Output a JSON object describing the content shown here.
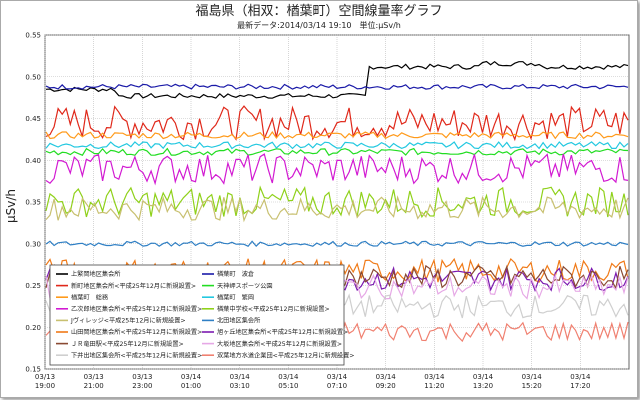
{
  "chart_data": {
    "type": "line",
    "title": "福島県（相双：楢葉町）空間線量率グラフ",
    "subtitle": "最新データ:2014/03/14 19:10　単位:μSv/h",
    "ylabel": "μSv/h",
    "xlabel": "",
    "ylim": [
      0.15,
      0.55
    ],
    "yticks": [
      "0.15",
      "0.20",
      "0.25",
      "0.30",
      "0.35",
      "0.40",
      "0.45",
      "0.50",
      "0.55"
    ],
    "xticks": [
      {
        "date": "03/13",
        "time": "19:00"
      },
      {
        "date": "03/13",
        "time": "21:00"
      },
      {
        "date": "03/13",
        "time": "23:00"
      },
      {
        "date": "03/14",
        "time": "01:00"
      },
      {
        "date": "03/14",
        "time": "03:10"
      },
      {
        "date": "03/14",
        "time": "05:10"
      },
      {
        "date": "03/14",
        "time": "07:10"
      },
      {
        "date": "03/14",
        "time": "09:20"
      },
      {
        "date": "03/14",
        "time": "11:20"
      },
      {
        "date": "03/14",
        "time": "13:20"
      },
      {
        "date": "03/14",
        "time": "15:20"
      },
      {
        "date": "03/14",
        "time": "17:20"
      }
    ],
    "grid": true,
    "legend_position": "bottom-left",
    "series": [
      {
        "name": "上繁岡地区集会所",
        "color": "#000000",
        "level": 0.485,
        "noise": 0.003,
        "profile": "step",
        "step_to": 0.512
      },
      {
        "name": "楢葉町　波倉",
        "color": "#1a1aa8",
        "level": 0.488,
        "noise": 0.003
      },
      {
        "name": "新町地区集会所<平成25年12月に新規設置>",
        "color": "#e0281a",
        "level": 0.445,
        "noise": 0.02
      },
      {
        "name": "天神岬スポーツ公園",
        "color": "#22dd22",
        "level": 0.41,
        "noise": 0.004
      },
      {
        "name": "楢葉町　総務",
        "color": "#ff9a1a",
        "level": 0.43,
        "noise": 0.004
      },
      {
        "name": "楢葉町　繁岡",
        "color": "#23c8e0",
        "level": 0.418,
        "noise": 0.004
      },
      {
        "name": "乙次郎地区集会所<平成25年12月に新規設置>",
        "color": "#d21ad2",
        "level": 0.39,
        "noise": 0.018
      },
      {
        "name": "楢葉中学校<平成25年12月に新規設置>",
        "color": "#8fd11a",
        "level": 0.35,
        "noise": 0.018
      },
      {
        "name": "Jヴィレッジ<平成25年12月に新規設置>",
        "color": "#c8c070",
        "level": 0.342,
        "noise": 0.014
      },
      {
        "name": "北田地区集会所",
        "color": "#2f7fc4",
        "level": 0.3,
        "noise": 0.003
      },
      {
        "name": "山田岡地区集会所<平成25年12月に新規設置>",
        "color": "#f07a18",
        "level": 0.268,
        "noise": 0.014
      },
      {
        "name": "旭ヶ丘地区集会所<平成25年12月に新規設置>",
        "color": "#7b1ab0",
        "level": 0.258,
        "noise": 0.014
      },
      {
        "name": "ＪＲ竜田駅<平成25年12月に新規設置>",
        "color": "#8a4a32",
        "level": 0.26,
        "noise": 0.014
      },
      {
        "name": "大坂地区集会所<平成25年12月に新規設置>",
        "color": "#e6a8e6",
        "level": 0.248,
        "noise": 0.014
      },
      {
        "name": "下井出地区集会所<平成25年12月に新規設置>",
        "color": "#cfcfcf",
        "level": 0.225,
        "noise": 0.014
      },
      {
        "name": "双葉地方水道企業団<平成25年12月に新規設置>",
        "color": "#f08070",
        "level": 0.195,
        "noise": 0.012
      }
    ]
  }
}
